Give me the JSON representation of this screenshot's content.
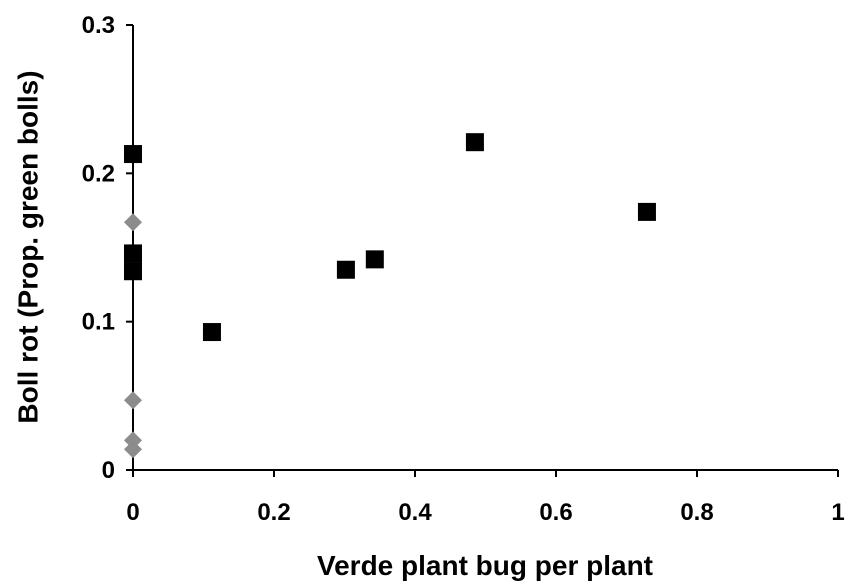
{
  "chart_data": {
    "type": "scatter",
    "xlabel": "Verde plant bug per plant",
    "ylabel": "Boll rot (Prop. green bolls)",
    "xlim": [
      0,
      1
    ],
    "xticks": [
      0,
      0.2,
      0.4,
      0.6,
      0.8,
      1
    ],
    "ylim": [
      0,
      0.3
    ],
    "yticks": [
      0,
      0.1,
      0.2,
      0.3
    ],
    "series": [
      {
        "color": "#000000",
        "marker": "square",
        "x": [
          0,
          0,
          0,
          0.112,
          0.302,
          0.343,
          0.485,
          0.729
        ],
        "values": [
          0.213,
          0.146,
          0.134,
          0.093,
          0.135,
          0.142,
          0.221,
          0.174
        ]
      },
      {
        "color": "#8c8c8c",
        "marker": "diamond",
        "x": [
          0,
          0,
          0,
          0
        ],
        "values": [
          0.167,
          0.047,
          0.02,
          0.014
        ]
      }
    ]
  }
}
